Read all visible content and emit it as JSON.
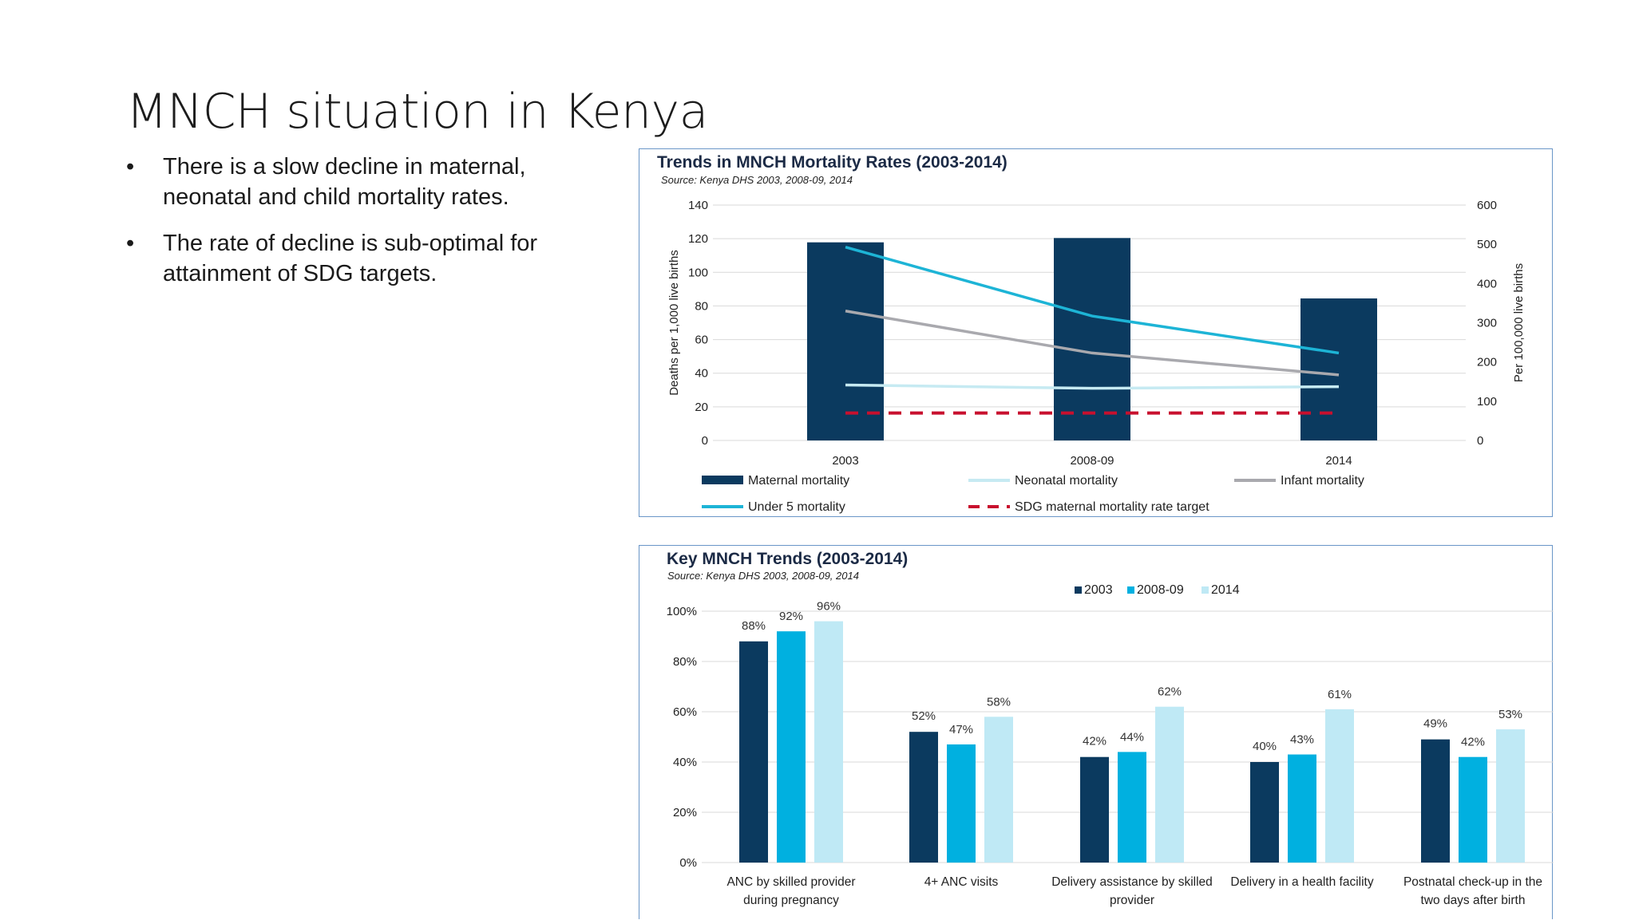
{
  "slide": {
    "title": "MNCH situation in Kenya",
    "bullets": [
      "There is a slow decline in maternal, neonatal and child mortality rates.",
      "The rate of decline is sub-optimal for attainment of SDG targets."
    ]
  },
  "colors": {
    "maternal": "#0b3a5f",
    "neonatal": "#c6eaf2",
    "infant": "#a9a9ae",
    "under5": "#1db4d6",
    "sdg": "#c8102e",
    "y2003": "#0b3a5f",
    "y2008": "#00b0e0",
    "y2014": "#bfe9f5",
    "grid": "#d9d9d9"
  },
  "chart_data": [
    {
      "type": "bar+line",
      "title": "Trends in MNCH Mortality Rates (2003-2014)",
      "subtitle": "Source: Kenya DHS 2003, 2008-09, 2014",
      "categories": [
        "2003",
        "2008-09",
        "2014"
      ],
      "ylabel": "Deaths per 1,000 live births",
      "y2label": "Per 100,000 live births",
      "ylim": [
        0,
        140
      ],
      "yticks": [
        "0",
        "20",
        "40",
        "60",
        "80",
        "100",
        "120",
        "140"
      ],
      "y2lim": [
        0,
        600
      ],
      "y2ticks": [
        "0",
        "100",
        "200",
        "300",
        "400",
        "500",
        "600"
      ],
      "bars": {
        "name": "Maternal mortality",
        "axis": "right",
        "values": [
          505,
          516,
          362
        ]
      },
      "lines": [
        {
          "name": "Neonatal mortality",
          "axis": "left",
          "values": [
            33,
            31,
            32
          ],
          "style": "solid",
          "color_key": "neonatal"
        },
        {
          "name": "Infant mortality",
          "axis": "left",
          "values": [
            77,
            52,
            39
          ],
          "style": "solid",
          "color_key": "infant"
        },
        {
          "name": "Under 5 mortality",
          "axis": "left",
          "values": [
            115,
            74,
            52
          ],
          "style": "solid",
          "color_key": "under5"
        },
        {
          "name": "SDG maternal mortality rate target",
          "axis": "right",
          "values": [
            70,
            70,
            70
          ],
          "style": "dashed",
          "color_key": "sdg"
        }
      ],
      "legend_position": "bottom"
    },
    {
      "type": "bar",
      "title": "Key MNCH Trends (2003-2014)",
      "subtitle": "Source: Kenya DHS 2003, 2008-09, 2014",
      "categories": [
        [
          "ANC by skilled provider",
          "during pregnancy"
        ],
        [
          "4+ ANC visits"
        ],
        [
          "Delivery assistance by skilled",
          "provider"
        ],
        [
          "Delivery in a health facility"
        ],
        [
          "Postnatal check-up in the",
          "two days after birth"
        ]
      ],
      "ylim": [
        0,
        100
      ],
      "yticks": [
        "0%",
        "20%",
        "40%",
        "60%",
        "80%",
        "100%"
      ],
      "series": [
        {
          "name": "2003",
          "color_key": "y2003",
          "values": [
            88,
            52,
            42,
            40,
            49
          ],
          "labels": [
            "88%",
            "52%",
            "42%",
            "40%",
            "49%"
          ]
        },
        {
          "name": "2008-09",
          "color_key": "y2008",
          "values": [
            92,
            47,
            44,
            43,
            42
          ],
          "labels": [
            "92%",
            "47%",
            "44%",
            "43%",
            "42%"
          ]
        },
        {
          "name": "2014",
          "color_key": "y2014",
          "values": [
            96,
            58,
            62,
            61,
            53
          ],
          "labels": [
            "96%",
            "58%",
            "62%",
            "61%",
            "53%"
          ]
        }
      ],
      "legend_position": "top-center"
    }
  ]
}
